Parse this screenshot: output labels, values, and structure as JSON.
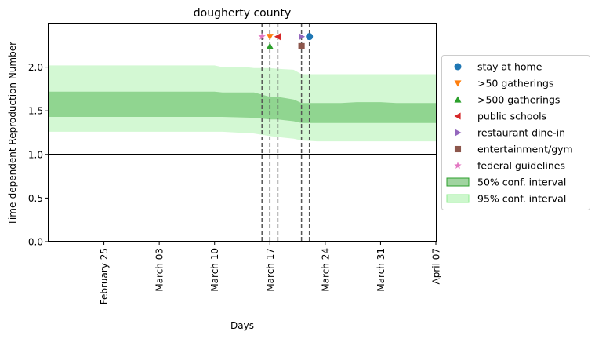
{
  "chart_data": {
    "type": "line",
    "title": "dougherty county",
    "xlabel": "Days",
    "ylabel": "Time-dependent Reproduction Number",
    "xlim": [
      "2020-02-18",
      "2020-04-07"
    ],
    "ylim": [
      0,
      2.5
    ],
    "x_ticks": [
      {
        "date": "2020-02-25",
        "label": "February 25"
      },
      {
        "date": "2020-03-03",
        "label": "March 03"
      },
      {
        "date": "2020-03-10",
        "label": "March 10"
      },
      {
        "date": "2020-03-17",
        "label": "March 17"
      },
      {
        "date": "2020-03-24",
        "label": "March 24"
      },
      {
        "date": "2020-03-31",
        "label": "March 31"
      },
      {
        "date": "2020-04-07",
        "label": "April 07"
      }
    ],
    "y_ticks": [
      0.0,
      0.5,
      1.0,
      1.5,
      2.0
    ],
    "y_tick_labels": [
      "0.0",
      "0.5",
      "1.0",
      "1.5",
      "2.0"
    ],
    "reference_line": {
      "y": 1.0,
      "color": "#000000"
    },
    "grid": false,
    "legend_position": "right, outside plot",
    "ci95": {
      "label": "95% conf. interval",
      "color": "#90ee90",
      "x": [
        "2020-02-18",
        "2020-03-10",
        "2020-03-11",
        "2020-03-13",
        "2020-03-14",
        "2020-03-15",
        "2020-03-17",
        "2020-03-18",
        "2020-03-20",
        "2020-03-21",
        "2020-03-23",
        "2020-03-26",
        "2020-03-28",
        "2020-03-31",
        "2020-04-02",
        "2020-04-07"
      ],
      "lower": [
        1.26,
        1.26,
        1.26,
        1.25,
        1.25,
        1.24,
        1.21,
        1.2,
        1.18,
        1.16,
        1.15,
        1.15,
        1.15,
        1.15,
        1.15,
        1.15
      ],
      "upper": [
        2.02,
        2.02,
        2.0,
        2.0,
        2.0,
        1.99,
        1.99,
        1.98,
        1.97,
        1.92,
        1.92,
        1.92,
        1.92,
        1.92,
        1.92,
        1.92
      ]
    },
    "ci50": {
      "label": "50% conf. interval",
      "color": "#2ca02c",
      "x": [
        "2020-02-18",
        "2020-03-10",
        "2020-03-11",
        "2020-03-15",
        "2020-03-17",
        "2020-03-18",
        "2020-03-20",
        "2020-03-21",
        "2020-03-23",
        "2020-03-26",
        "2020-03-28",
        "2020-03-31",
        "2020-04-02",
        "2020-04-07"
      ],
      "lower": [
        1.43,
        1.43,
        1.43,
        1.42,
        1.4,
        1.4,
        1.38,
        1.36,
        1.36,
        1.36,
        1.36,
        1.36,
        1.36,
        1.36
      ],
      "upper": [
        1.72,
        1.72,
        1.71,
        1.71,
        1.66,
        1.66,
        1.63,
        1.59,
        1.59,
        1.59,
        1.6,
        1.6,
        1.59,
        1.59
      ]
    },
    "interventions": [
      {
        "name": "stay at home",
        "date": "2020-03-22",
        "y": 2.35,
        "color": "#1f77b4",
        "marker": "circle"
      },
      {
        "name": ">50 gatherings",
        "date": "2020-03-17",
        "y": 2.35,
        "color": "#ff7f0e",
        "marker": "triangle-down"
      },
      {
        "name": ">500 gatherings",
        "date": "2020-03-17",
        "y": 2.24,
        "color": "#2ca02c",
        "marker": "triangle-up"
      },
      {
        "name": "public schools",
        "date": "2020-03-18",
        "y": 2.35,
        "color": "#d62728",
        "marker": "triangle-left"
      },
      {
        "name": "restaurant dine-in",
        "date": "2020-03-21",
        "y": 2.35,
        "color": "#9467bd",
        "marker": "triangle-right"
      },
      {
        "name": "entertainment/gym",
        "date": "2020-03-21",
        "y": 2.24,
        "color": "#8c564b",
        "marker": "square"
      },
      {
        "name": "federal guidelines",
        "date": "2020-03-16",
        "y": 2.35,
        "color": "#e377c2",
        "marker": "star"
      }
    ],
    "vlines": [
      "2020-03-16",
      "2020-03-17",
      "2020-03-18",
      "2020-03-21",
      "2020-03-22"
    ]
  }
}
